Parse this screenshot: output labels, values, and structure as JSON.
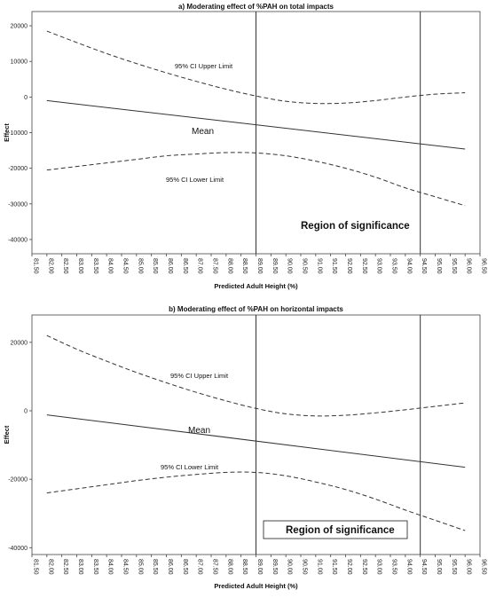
{
  "chart_data": [
    {
      "type": "line",
      "title": "a) Moderating effect of %PAH on total impacts",
      "xlabel": "Predicted Adult Height (%)",
      "ylabel": "Effect",
      "xlim": [
        81.5,
        96.5
      ],
      "ylim": [
        -44000,
        24000
      ],
      "x_ticks": [
        "81.50",
        "82.00",
        "82.50",
        "83.00",
        "83.50",
        "84.00",
        "84.50",
        "85.00",
        "85.50",
        "86.00",
        "86.50",
        "87.00",
        "87.50",
        "88.00",
        "88.50",
        "89.00",
        "89.50",
        "90.00",
        "90.50",
        "91.00",
        "91.50",
        "92.00",
        "92.50",
        "93.00",
        "93.50",
        "94.00",
        "94.50",
        "95.00",
        "95.50",
        "96.00",
        "96.50"
      ],
      "y_ticks": [
        -40000,
        -30000,
        -20000,
        -10000,
        0,
        10000,
        20000
      ],
      "y_tick_labels": [
        "-40000",
        "-30000",
        "-20000",
        "-10000",
        "0",
        "10000",
        "20000"
      ],
      "series": [
        {
          "name": "95% CI Upper Limit",
          "style": "dashed",
          "x": [
            82,
            83,
            84,
            85,
            86,
            87,
            88,
            89,
            90,
            91,
            92,
            93,
            94,
            95,
            96
          ],
          "y": [
            18500,
            15300,
            12200,
            9400,
            6800,
            4400,
            2200,
            300,
            -1200,
            -1800,
            -1700,
            -1000,
            0,
            800,
            1200
          ]
        },
        {
          "name": "Mean",
          "style": "solid",
          "x": [
            82,
            96
          ],
          "y": [
            -1000,
            -14600
          ]
        },
        {
          "name": "95% CI Lower Limit",
          "style": "dashed",
          "x": [
            82,
            83,
            84,
            85,
            86,
            87,
            88,
            89,
            90,
            91,
            92,
            93,
            94,
            95,
            96
          ],
          "y": [
            -20500,
            -19500,
            -18500,
            -17500,
            -16500,
            -16000,
            -15600,
            -15700,
            -16500,
            -18000,
            -20000,
            -22500,
            -25500,
            -28000,
            -30500
          ]
        }
      ],
      "vertical_lines": [
        89.0,
        94.5
      ],
      "annotations": {
        "upper_label": "95% CI Upper Limit",
        "mean_label": "Mean",
        "lower_label": "95% CI Lower Limit",
        "region_label": "Region of significance"
      },
      "grid": false,
      "legend": "none"
    },
    {
      "type": "line",
      "title": "b) Moderating effect of %PAH on horizontal impacts",
      "xlabel": "Predicted Adult Height (%)",
      "ylabel": "Effect",
      "xlim": [
        81.5,
        96.5
      ],
      "ylim": [
        -42000,
        28000
      ],
      "x_ticks": [
        "81.50",
        "82.00",
        "82.50",
        "83.00",
        "83.50",
        "84.00",
        "84.50",
        "85.00",
        "85.50",
        "86.00",
        "86.50",
        "87.00",
        "87.50",
        "88.00",
        "88.50",
        "89.00",
        "89.50",
        "90.00",
        "90.50",
        "91.00",
        "91.50",
        "92.00",
        "92.50",
        "93.00",
        "93.50",
        "94.00",
        "94.50",
        "95.00",
        "95.50",
        "96.00",
        "96.50"
      ],
      "y_ticks": [
        -40000,
        -20000,
        0,
        20000
      ],
      "y_tick_labels": [
        "-40000",
        "-20000",
        "0",
        "20000"
      ],
      "series": [
        {
          "name": "95% CI Upper Limit",
          "style": "dashed",
          "x": [
            82,
            83,
            84,
            85,
            86,
            87,
            88,
            89,
            90,
            91,
            92,
            93,
            94,
            95,
            96
          ],
          "y": [
            22000,
            18000,
            14500,
            11200,
            8200,
            5400,
            2900,
            700,
            -900,
            -1500,
            -1300,
            -600,
            300,
            1300,
            2300
          ]
        },
        {
          "name": "Mean",
          "style": "solid",
          "x": [
            82,
            96
          ],
          "y": [
            -1200,
            -16500
          ]
        },
        {
          "name": "95% CI Lower Limit",
          "style": "dashed",
          "x": [
            82,
            83,
            84,
            85,
            86,
            87,
            88,
            89,
            90,
            91,
            92,
            93,
            94,
            95,
            96
          ],
          "y": [
            -24000,
            -22800,
            -21600,
            -20400,
            -19400,
            -18600,
            -18000,
            -18000,
            -19000,
            -20800,
            -23000,
            -25800,
            -29000,
            -32000,
            -35000
          ]
        }
      ],
      "vertical_lines": [
        89.0,
        94.5
      ],
      "annotations": {
        "upper_label": "95% CI Upper Limit",
        "mean_label": "Mean",
        "lower_label": "95% CI Lower Limit",
        "region_label": "Region of significance"
      },
      "grid": false,
      "legend": "none"
    }
  ]
}
